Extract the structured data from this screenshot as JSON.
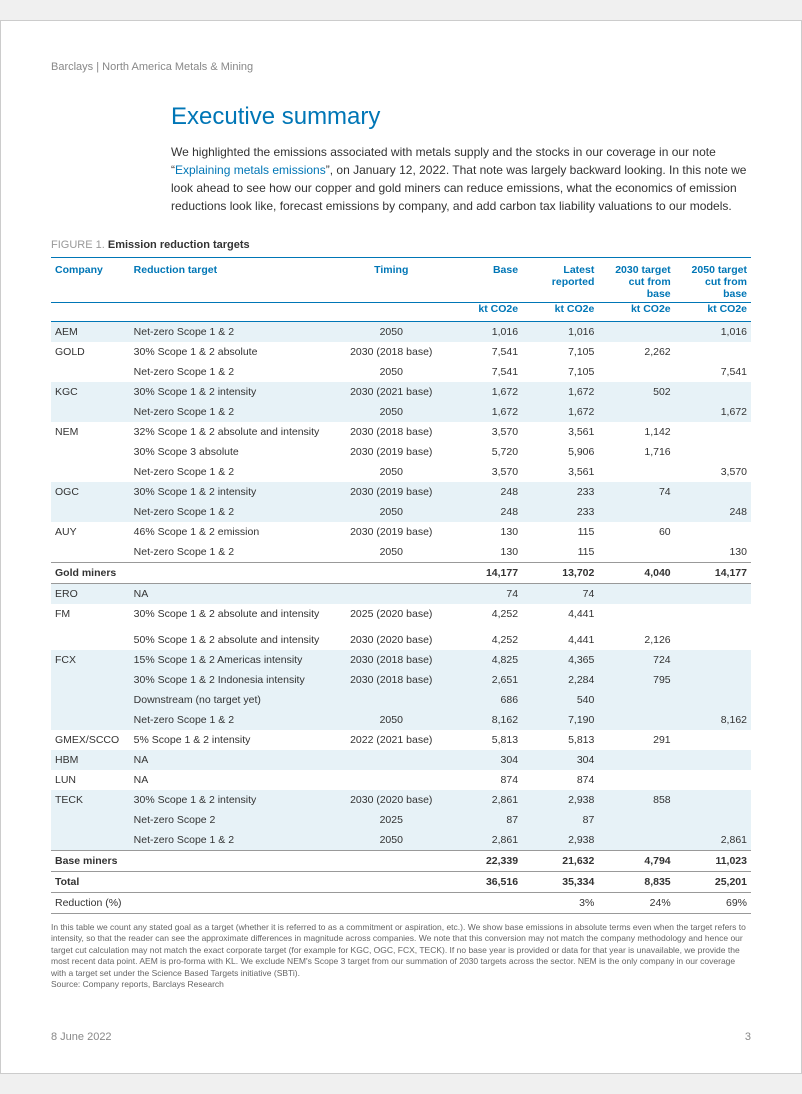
{
  "colors": {
    "brand_blue": "#0076b6",
    "light_band": "#e7f2f7",
    "header_grey": "#888888",
    "text": "#333333",
    "border_grey": "#999999"
  },
  "header": "Barclays | North America Metals & Mining",
  "title": "Executive summary",
  "intro_pre": "We highlighted the emissions associated with metals supply and the stocks in our coverage in our note “",
  "intro_link": "Explaining metals emissions",
  "intro_post": "”, on January 12, 2022. That note was largely backward looking. In this note we look ahead to see how our copper and gold miners can reduce emissions, what the economics of emission reductions look like, forecast emissions by company, and add carbon tax liability valuations to our models.",
  "figure_prefix": "FIGURE 1.",
  "figure_title": "Emission reduction targets",
  "columns": {
    "company": "Company",
    "reduction": "Reduction target",
    "timing": "Timing",
    "base": "Base",
    "latest": "Latest reported",
    "cut2030": "2030 target cut from base",
    "cut2050": "2050 target cut from base",
    "unit": "kt CO2e"
  },
  "rows": [
    {
      "band": true,
      "company": "AEM",
      "target": "Net-zero Scope 1 & 2",
      "timing": "2050",
      "base": "1,016",
      "latest": "1,016",
      "c30": "",
      "c50": "1,016"
    },
    {
      "band": false,
      "company": "GOLD",
      "target": "30% Scope 1 & 2 absolute",
      "timing": "2030 (2018 base)",
      "base": "7,541",
      "latest": "7,105",
      "c30": "2,262",
      "c50": ""
    },
    {
      "band": false,
      "company": "",
      "target": "Net-zero Scope 1 & 2",
      "timing": "2050",
      "base": "7,541",
      "latest": "7,105",
      "c30": "",
      "c50": "7,541"
    },
    {
      "band": true,
      "company": "KGC",
      "target": "30% Scope 1 & 2 intensity",
      "timing": "2030 (2021 base)",
      "base": "1,672",
      "latest": "1,672",
      "c30": "502",
      "c50": ""
    },
    {
      "band": true,
      "company": "",
      "target": "Net-zero Scope 1 & 2",
      "timing": "2050",
      "base": "1,672",
      "latest": "1,672",
      "c30": "",
      "c50": "1,672"
    },
    {
      "band": false,
      "company": "NEM",
      "target": "32% Scope 1 & 2 absolute and intensity",
      "timing": "2030 (2018 base)",
      "base": "3,570",
      "latest": "3,561",
      "c30": "1,142",
      "c50": ""
    },
    {
      "band": false,
      "company": "",
      "target": "30% Scope 3 absolute",
      "timing": "2030 (2019 base)",
      "base": "5,720",
      "latest": "5,906",
      "c30": "1,716",
      "c50": ""
    },
    {
      "band": false,
      "company": "",
      "target": "Net-zero Scope 1 & 2",
      "timing": "2050",
      "base": "3,570",
      "latest": "3,561",
      "c30": "",
      "c50": "3,570"
    },
    {
      "band": true,
      "company": "OGC",
      "target": "30% Scope 1 & 2 intensity",
      "timing": "2030 (2019 base)",
      "base": "248",
      "latest": "233",
      "c30": "74",
      "c50": ""
    },
    {
      "band": true,
      "company": "",
      "target": "Net-zero Scope 1 & 2",
      "timing": "2050",
      "base": "248",
      "latest": "233",
      "c30": "",
      "c50": "248"
    },
    {
      "band": false,
      "company": "AUY",
      "target": "46% Scope 1 & 2 emission",
      "timing": "2030 (2019 base)",
      "base": "130",
      "latest": "115",
      "c30": "60",
      "c50": ""
    },
    {
      "band": false,
      "company": "",
      "target": "Net-zero Scope 1 & 2",
      "timing": "2050",
      "base": "130",
      "latest": "115",
      "c30": "",
      "c50": "130"
    }
  ],
  "gold_section": {
    "label": "Gold miners",
    "base": "14,177",
    "latest": "13,702",
    "c30": "4,040",
    "c50": "14,177"
  },
  "rows2": [
    {
      "band": true,
      "company": "ERO",
      "target": "NA",
      "timing": "",
      "base": "74",
      "latest": "74",
      "c30": "",
      "c50": ""
    },
    {
      "band": false,
      "company": "FM",
      "target": "30% Scope 1 & 2 absolute and intensity",
      "timing": "2025 (2020 base)",
      "base": "4,252",
      "latest": "4,441",
      "c30": "",
      "c50": ""
    },
    {
      "band": false,
      "company": "",
      "target": "50% Scope 1 & 2 absolute and intensity",
      "timing": "2030 (2020 base)",
      "base": "4,252",
      "latest": "4,441",
      "c30": "2,126",
      "c50": "",
      "extra_pad": true
    },
    {
      "band": true,
      "company": "FCX",
      "target": "15% Scope 1 & 2 Americas intensity",
      "timing": "2030 (2018 base)",
      "base": "4,825",
      "latest": "4,365",
      "c30": "724",
      "c50": ""
    },
    {
      "band": true,
      "company": "",
      "target": "30% Scope 1 & 2 Indonesia intensity",
      "timing": "2030 (2018 base)",
      "base": "2,651",
      "latest": "2,284",
      "c30": "795",
      "c50": ""
    },
    {
      "band": true,
      "company": "",
      "target": "Downstream (no target yet)",
      "timing": "",
      "base": "686",
      "latest": "540",
      "c30": "",
      "c50": ""
    },
    {
      "band": true,
      "company": "",
      "target": "Net-zero Scope 1 & 2",
      "timing": "2050",
      "base": "8,162",
      "latest": "7,190",
      "c30": "",
      "c50": "8,162"
    },
    {
      "band": false,
      "company": "GMEX/SCCO",
      "target": "5% Scope 1 & 2 intensity",
      "timing": "2022 (2021 base)",
      "base": "5,813",
      "latest": "5,813",
      "c30": "291",
      "c50": ""
    },
    {
      "band": true,
      "company": "HBM",
      "target": "NA",
      "timing": "",
      "base": "304",
      "latest": "304",
      "c30": "",
      "c50": ""
    },
    {
      "band": false,
      "company": "LUN",
      "target": "NA",
      "timing": "",
      "base": "874",
      "latest": "874",
      "c30": "",
      "c50": ""
    },
    {
      "band": true,
      "company": "TECK",
      "target": "30% Scope 1 & 2 intensity",
      "timing": "2030 (2020 base)",
      "base": "2,861",
      "latest": "2,938",
      "c30": "858",
      "c50": ""
    },
    {
      "band": true,
      "company": "",
      "target": "Net-zero Scope 2",
      "timing": "2025",
      "base": "87",
      "latest": "87",
      "c30": "",
      "c50": ""
    },
    {
      "band": true,
      "company": "",
      "target": "Net-zero Scope 1 & 2",
      "timing": "2050",
      "base": "2,861",
      "latest": "2,938",
      "c30": "",
      "c50": "2,861"
    }
  ],
  "base_section": {
    "label": "Base miners",
    "base": "22,339",
    "latest": "21,632",
    "c30": "4,794",
    "c50": "11,023"
  },
  "total_section": {
    "label": "Total",
    "base": "36,516",
    "latest": "35,334",
    "c30": "8,835",
    "c50": "25,201"
  },
  "reduction_row": {
    "label": "Reduction (%)",
    "latest": "3%",
    "c30": "24%",
    "c50": "69%"
  },
  "footnote": "In this table we count any stated goal as a target (whether it is referred to as a commitment or aspiration, etc.). We show base emissions in absolute terms even when the target refers to intensity, so that the reader can see the approximate differences in magnitude across companies. We note that this conversion may not match the company methodology and hence our target cut calculation may not match the exact corporate target (for example for KGC, OGC, FCX, TECK). If no base year is provided or data for that year is unavailable, we provide the most recent data point. AEM is pro-forma with KL. We exclude NEM's Scope 3 target from our summation of 2030 targets across the sector. NEM is the only company in our coverage with a target set under the Science Based Targets initiative (SBTi).",
  "source": "Source: Company reports, Barclays Research",
  "footer_date": "8 June 2022",
  "footer_page": "3"
}
